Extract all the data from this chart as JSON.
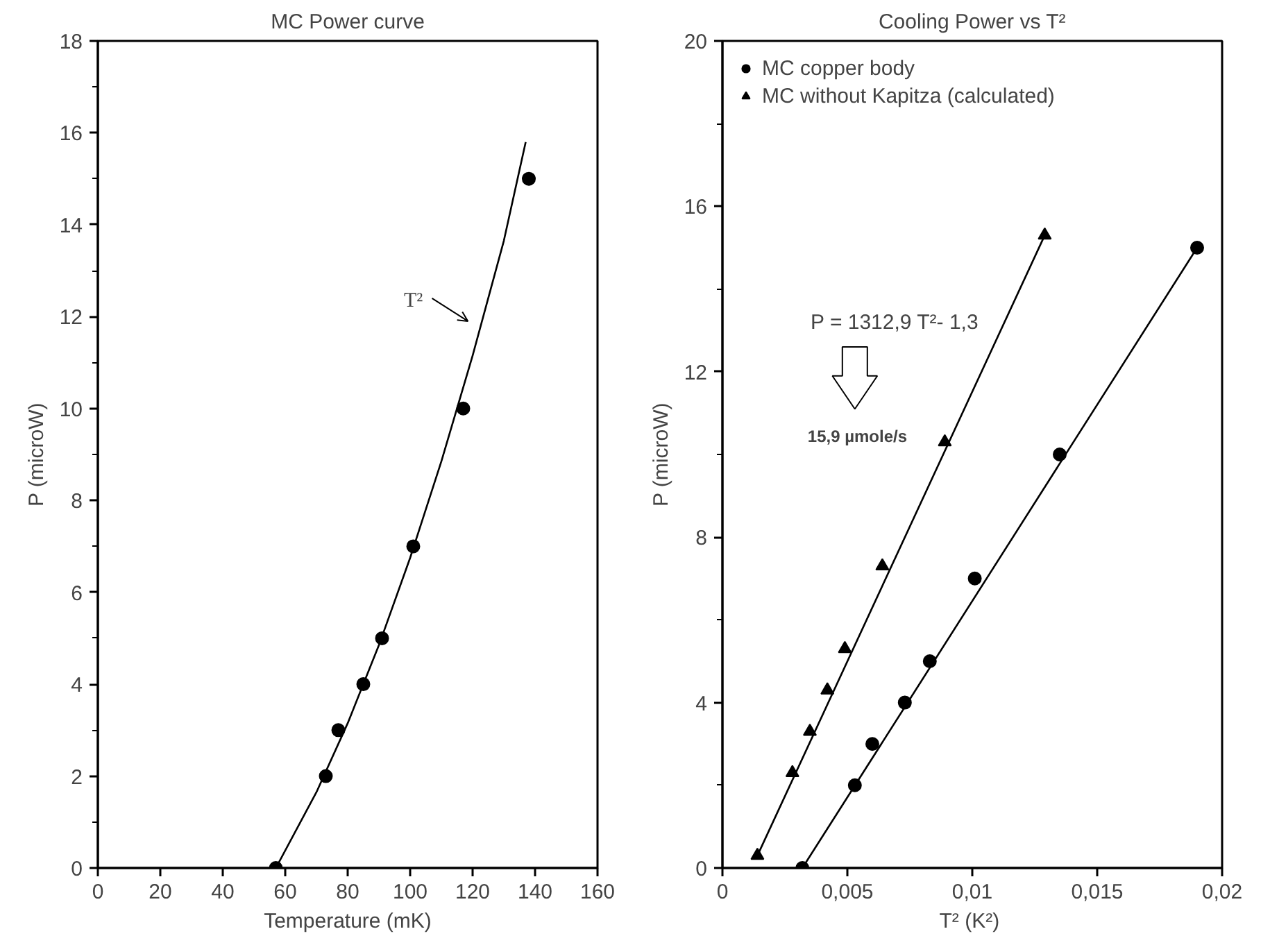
{
  "chart_data": [
    {
      "type": "scatter",
      "title": "MC Power curve",
      "xlabel": "Temperature (mK)",
      "ylabel": "P (microW)",
      "xlim": [
        0,
        160
      ],
      "ylim": [
        0,
        18
      ],
      "xticks": [
        0,
        20,
        40,
        60,
        80,
        100,
        120,
        140,
        160
      ],
      "yticks": [
        0,
        {
          "value": 1,
          "label": null
        },
        2,
        {
          "value": 3,
          "label": null
        },
        4,
        {
          "value": 5,
          "label": null
        },
        6,
        {
          "value": 7,
          "label": null
        },
        8,
        {
          "value": 9,
          "label": null
        },
        10,
        {
          "value": 11,
          "label": null
        },
        12,
        {
          "value": 13,
          "label": null
        },
        14,
        {
          "value": 15,
          "label": null
        },
        16,
        {
          "value": 17,
          "label": null
        },
        18
      ],
      "grid": false,
      "legend": false,
      "series": [
        {
          "marker": "circle",
          "color": "#000000",
          "x": [
            57,
            73,
            77,
            85,
            91,
            101,
            117,
            138
          ],
          "values": [
            0,
            2,
            3,
            4,
            5,
            7,
            10,
            15
          ]
        },
        {
          "type": "line",
          "marker": "none",
          "color": "#000000",
          "x": [
            57,
            70,
            80,
            90,
            100,
            110,
            120,
            130,
            137
          ],
          "values": [
            0,
            1.65,
            3.15,
            4.85,
            6.75,
            8.85,
            11.15,
            13.65,
            15.8
          ]
        }
      ],
      "annotations": [
        "T²"
      ]
    },
    {
      "type": "scatter",
      "title": "Cooling Power vs T²",
      "xlabel": "T²  (K²)",
      "ylabel": "P (microW)",
      "xlim": [
        0,
        0.02
      ],
      "ylim": [
        0,
        20
      ],
      "xticks": [
        0,
        {
          "value": 0.005,
          "label": "0,005"
        },
        {
          "value": 0.01,
          "label": "0,01"
        },
        {
          "value": 0.015,
          "label": "0,015"
        },
        {
          "value": 0.02,
          "label": "0,02"
        }
      ],
      "yticks": [
        0,
        {
          "value": 2,
          "label": null
        },
        4,
        {
          "value": 6,
          "label": null
        },
        8,
        {
          "value": 10,
          "label": null
        },
        12,
        {
          "value": 14,
          "label": null
        },
        16,
        {
          "value": 18,
          "label": null
        },
        20
      ],
      "grid": false,
      "legend": "top left",
      "series": [
        {
          "name": "MC copper body",
          "marker": "circle",
          "color": "#000000",
          "x": [
            0.0032,
            0.0053,
            0.006,
            0.0073,
            0.0083,
            0.0101,
            0.0135,
            0.019
          ],
          "values": [
            0,
            2,
            3,
            4,
            5,
            7,
            10,
            15
          ]
        },
        {
          "name": "MC without Kapitza (calculated)",
          "marker": "triangle",
          "color": "#000000",
          "x": [
            0.0014,
            0.0028,
            0.0035,
            0.0042,
            0.0049,
            0.0064,
            0.0089,
            0.0129
          ],
          "values": [
            0.3,
            2.3,
            3.3,
            4.3,
            5.3,
            7.3,
            10.3,
            15.3
          ]
        },
        {
          "type": "line",
          "marker": "none",
          "color": "#000000",
          "x": [
            0.0032,
            0.019
          ],
          "values": [
            0,
            15
          ]
        },
        {
          "type": "line",
          "marker": "none",
          "color": "#000000",
          "x": [
            0.0014,
            0.0129
          ],
          "values": [
            0.3,
            15.3
          ]
        }
      ],
      "annotations": [
        "P = 1312,9 T²- 1,3",
        "15,9 µmole/s"
      ]
    }
  ]
}
